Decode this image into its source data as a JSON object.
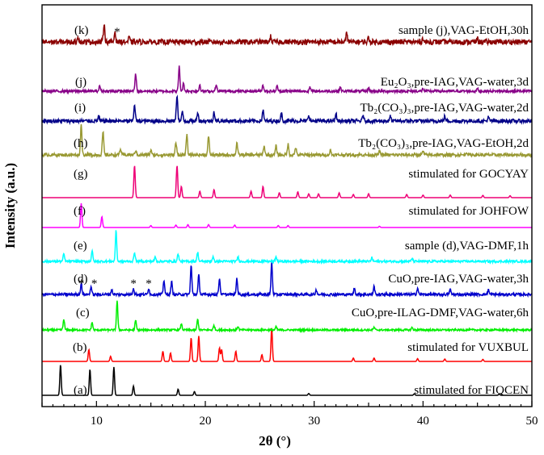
{
  "chart_data": {
    "type": "line",
    "xlabel": "2θ (°)",
    "ylabel": "Intensity (a.u.)",
    "xlim": [
      5,
      50
    ],
    "xticks": [
      "10",
      "20",
      "30",
      "40",
      "50"
    ],
    "grid": false,
    "series": [
      {
        "key": "a",
        "letter": "(a)",
        "label": "stimulated for FIQCEN",
        "color": "#000000",
        "noise": 0.0,
        "peaks": [
          [
            6.7,
            1.0
          ],
          [
            9.4,
            0.85
          ],
          [
            11.6,
            0.92
          ],
          [
            13.4,
            0.3
          ],
          [
            17.5,
            0.2
          ],
          [
            19.0,
            0.12
          ],
          [
            29.5,
            0.06
          ],
          [
            39.2,
            0.05
          ],
          [
            47.0,
            0.04
          ]
        ]
      },
      {
        "key": "b",
        "letter": "(b)",
        "label": "stimulated for VUXBUL",
        "color": "#ff0000",
        "noise": 0.0,
        "peaks": [
          [
            9.3,
            0.35
          ],
          [
            11.3,
            0.15
          ],
          [
            16.1,
            0.3
          ],
          [
            16.8,
            0.25
          ],
          [
            18.7,
            0.7
          ],
          [
            19.4,
            0.75
          ],
          [
            21.3,
            0.4
          ],
          [
            21.5,
            0.35
          ],
          [
            22.8,
            0.3
          ],
          [
            25.2,
            0.2
          ],
          [
            26.1,
            1.0
          ],
          [
            33.6,
            0.1
          ],
          [
            35.5,
            0.1
          ],
          [
            39.5,
            0.08
          ],
          [
            42.0,
            0.07
          ],
          [
            45.5,
            0.06
          ]
        ]
      },
      {
        "key": "c",
        "letter": "(c)",
        "label": "CuO,pre-ILAG-DMF,VAG-water,6h",
        "color": "#00ee00",
        "noise": 0.06,
        "peaks": [
          [
            7.0,
            0.35
          ],
          [
            9.6,
            0.25
          ],
          [
            11.9,
            0.95
          ],
          [
            13.6,
            0.3
          ],
          [
            17.8,
            0.2
          ],
          [
            19.3,
            0.35
          ],
          [
            20.8,
            0.15
          ],
          [
            23.0,
            0.12
          ],
          [
            26.5,
            0.1
          ],
          [
            35.5,
            0.08
          ],
          [
            39.0,
            0.08
          ]
        ]
      },
      {
        "key": "d",
        "letter": "(d)",
        "label": "CuO,pre-IAG,VAG-water,3h",
        "color": "#0000cc",
        "noise": 0.08,
        "peaks": [
          [
            8.6,
            0.35
          ],
          [
            9.5,
            0.25
          ],
          [
            11.4,
            0.15
          ],
          [
            13.4,
            0.2
          ],
          [
            14.8,
            0.2
          ],
          [
            16.2,
            0.45
          ],
          [
            16.9,
            0.4
          ],
          [
            18.7,
            0.9
          ],
          [
            19.4,
            0.6
          ],
          [
            21.3,
            0.5
          ],
          [
            22.9,
            0.5
          ],
          [
            26.1,
            1.0
          ],
          [
            30.2,
            0.15
          ],
          [
            33.7,
            0.2
          ],
          [
            35.5,
            0.25
          ],
          [
            39.5,
            0.2
          ],
          [
            42.5,
            0.15
          ],
          [
            46.0,
            0.15
          ]
        ]
      },
      {
        "key": "e",
        "letter": "(e)",
        "label": "sample (d),VAG-DMF,1h",
        "color": "#00ffff",
        "noise": 0.07,
        "peaks": [
          [
            7.0,
            0.25
          ],
          [
            9.6,
            0.35
          ],
          [
            11.8,
            1.0
          ],
          [
            13.5,
            0.3
          ],
          [
            15.4,
            0.15
          ],
          [
            17.5,
            0.25
          ],
          [
            19.3,
            0.3
          ],
          [
            20.7,
            0.15
          ],
          [
            23.0,
            0.15
          ],
          [
            26.5,
            0.15
          ],
          [
            35.3,
            0.12
          ],
          [
            39.0,
            0.1
          ]
        ]
      },
      {
        "key": "f",
        "letter": "(f)",
        "label": "stimulated for JOHFOW",
        "color": "#ff00ff",
        "noise": 0.0,
        "peaks": [
          [
            8.6,
            1.0
          ],
          [
            10.5,
            0.45
          ],
          [
            15.0,
            0.08
          ],
          [
            17.3,
            0.1
          ],
          [
            18.4,
            0.12
          ],
          [
            20.3,
            0.12
          ],
          [
            22.7,
            0.1
          ],
          [
            26.7,
            0.08
          ],
          [
            27.6,
            0.08
          ],
          [
            36.0,
            0.05
          ]
        ]
      },
      {
        "key": "g",
        "letter": "(g)",
        "label": "stimulated for GOCYAY",
        "color": "#ee0077",
        "noise": 0.0,
        "peaks": [
          [
            13.5,
            1.0
          ],
          [
            17.4,
            1.0
          ],
          [
            17.8,
            0.35
          ],
          [
            19.5,
            0.2
          ],
          [
            20.8,
            0.25
          ],
          [
            24.2,
            0.2
          ],
          [
            25.3,
            0.35
          ],
          [
            26.8,
            0.15
          ],
          [
            28.5,
            0.18
          ],
          [
            29.5,
            0.12
          ],
          [
            30.4,
            0.12
          ],
          [
            32.3,
            0.15
          ],
          [
            33.6,
            0.1
          ],
          [
            35.0,
            0.12
          ],
          [
            38.5,
            0.1
          ],
          [
            40.0,
            0.08
          ],
          [
            42.5,
            0.08
          ],
          [
            45.5,
            0.07
          ],
          [
            48.0,
            0.06
          ]
        ]
      },
      {
        "key": "h",
        "letter": "(h)",
        "label": "Tb₂(CO₃)₃,pre-IAG,VAG-EtOH,2d",
        "color": "#999933",
        "noise": 0.1,
        "peaks": [
          [
            8.6,
            1.0
          ],
          [
            10.6,
            0.75
          ],
          [
            12.2,
            0.2
          ],
          [
            13.6,
            0.15
          ],
          [
            15.0,
            0.15
          ],
          [
            17.3,
            0.4
          ],
          [
            18.3,
            0.65
          ],
          [
            20.3,
            0.6
          ],
          [
            22.9,
            0.4
          ],
          [
            25.4,
            0.3
          ],
          [
            26.5,
            0.3
          ],
          [
            27.6,
            0.35
          ],
          [
            28.3,
            0.25
          ],
          [
            31.5,
            0.15
          ],
          [
            36.0,
            0.12
          ],
          [
            40.0,
            0.12
          ],
          [
            44.0,
            0.1
          ]
        ]
      },
      {
        "key": "i",
        "letter": "(i)",
        "label": "Tb₂(CO₃)₃,pre-IAG,VAG-water,2d",
        "color": "#000088",
        "noise": 0.12,
        "peaks": [
          [
            10.2,
            0.15
          ],
          [
            13.5,
            0.55
          ],
          [
            17.4,
            0.85
          ],
          [
            17.9,
            0.3
          ],
          [
            19.3,
            0.3
          ],
          [
            20.8,
            0.3
          ],
          [
            25.3,
            0.35
          ],
          [
            27.0,
            0.25
          ],
          [
            29.5,
            0.2
          ],
          [
            32.0,
            0.25
          ],
          [
            34.5,
            0.2
          ],
          [
            37.0,
            0.15
          ],
          [
            42.0,
            0.15
          ],
          [
            46.0,
            0.12
          ]
        ]
      },
      {
        "key": "j",
        "letter": "(j)",
        "label": "Eu₂O₃,pre-IAG,VAG-water,3d",
        "color": "#880088",
        "noise": 0.1,
        "peaks": [
          [
            10.3,
            0.2
          ],
          [
            13.6,
            0.65
          ],
          [
            17.6,
            0.95
          ],
          [
            18.0,
            0.3
          ],
          [
            19.5,
            0.25
          ],
          [
            21.0,
            0.25
          ],
          [
            25.3,
            0.25
          ],
          [
            26.6,
            0.2
          ],
          [
            29.6,
            0.15
          ],
          [
            32.4,
            0.15
          ],
          [
            35.0,
            0.12
          ],
          [
            40.0,
            0.1
          ],
          [
            45.0,
            0.1
          ]
        ]
      },
      {
        "key": "k",
        "letter": "(k)",
        "label": "sample (j),VAG-EtOH,30h",
        "color": "#8b0000",
        "noise": 0.25,
        "peaks": [
          [
            10.7,
            0.9
          ],
          [
            11.7,
            0.5
          ],
          [
            8.3,
            0.3
          ],
          [
            13.0,
            0.2
          ],
          [
            26.0,
            0.25
          ],
          [
            33.0,
            0.45
          ],
          [
            35.0,
            0.2
          ],
          [
            40.0,
            0.2
          ],
          [
            45.0,
            0.15
          ]
        ]
      }
    ],
    "annotations": {
      "asterisk": "*",
      "d_marks": [
        8.6,
        9.8,
        13.4,
        14.8
      ],
      "k_marks": [
        11.9
      ]
    }
  }
}
